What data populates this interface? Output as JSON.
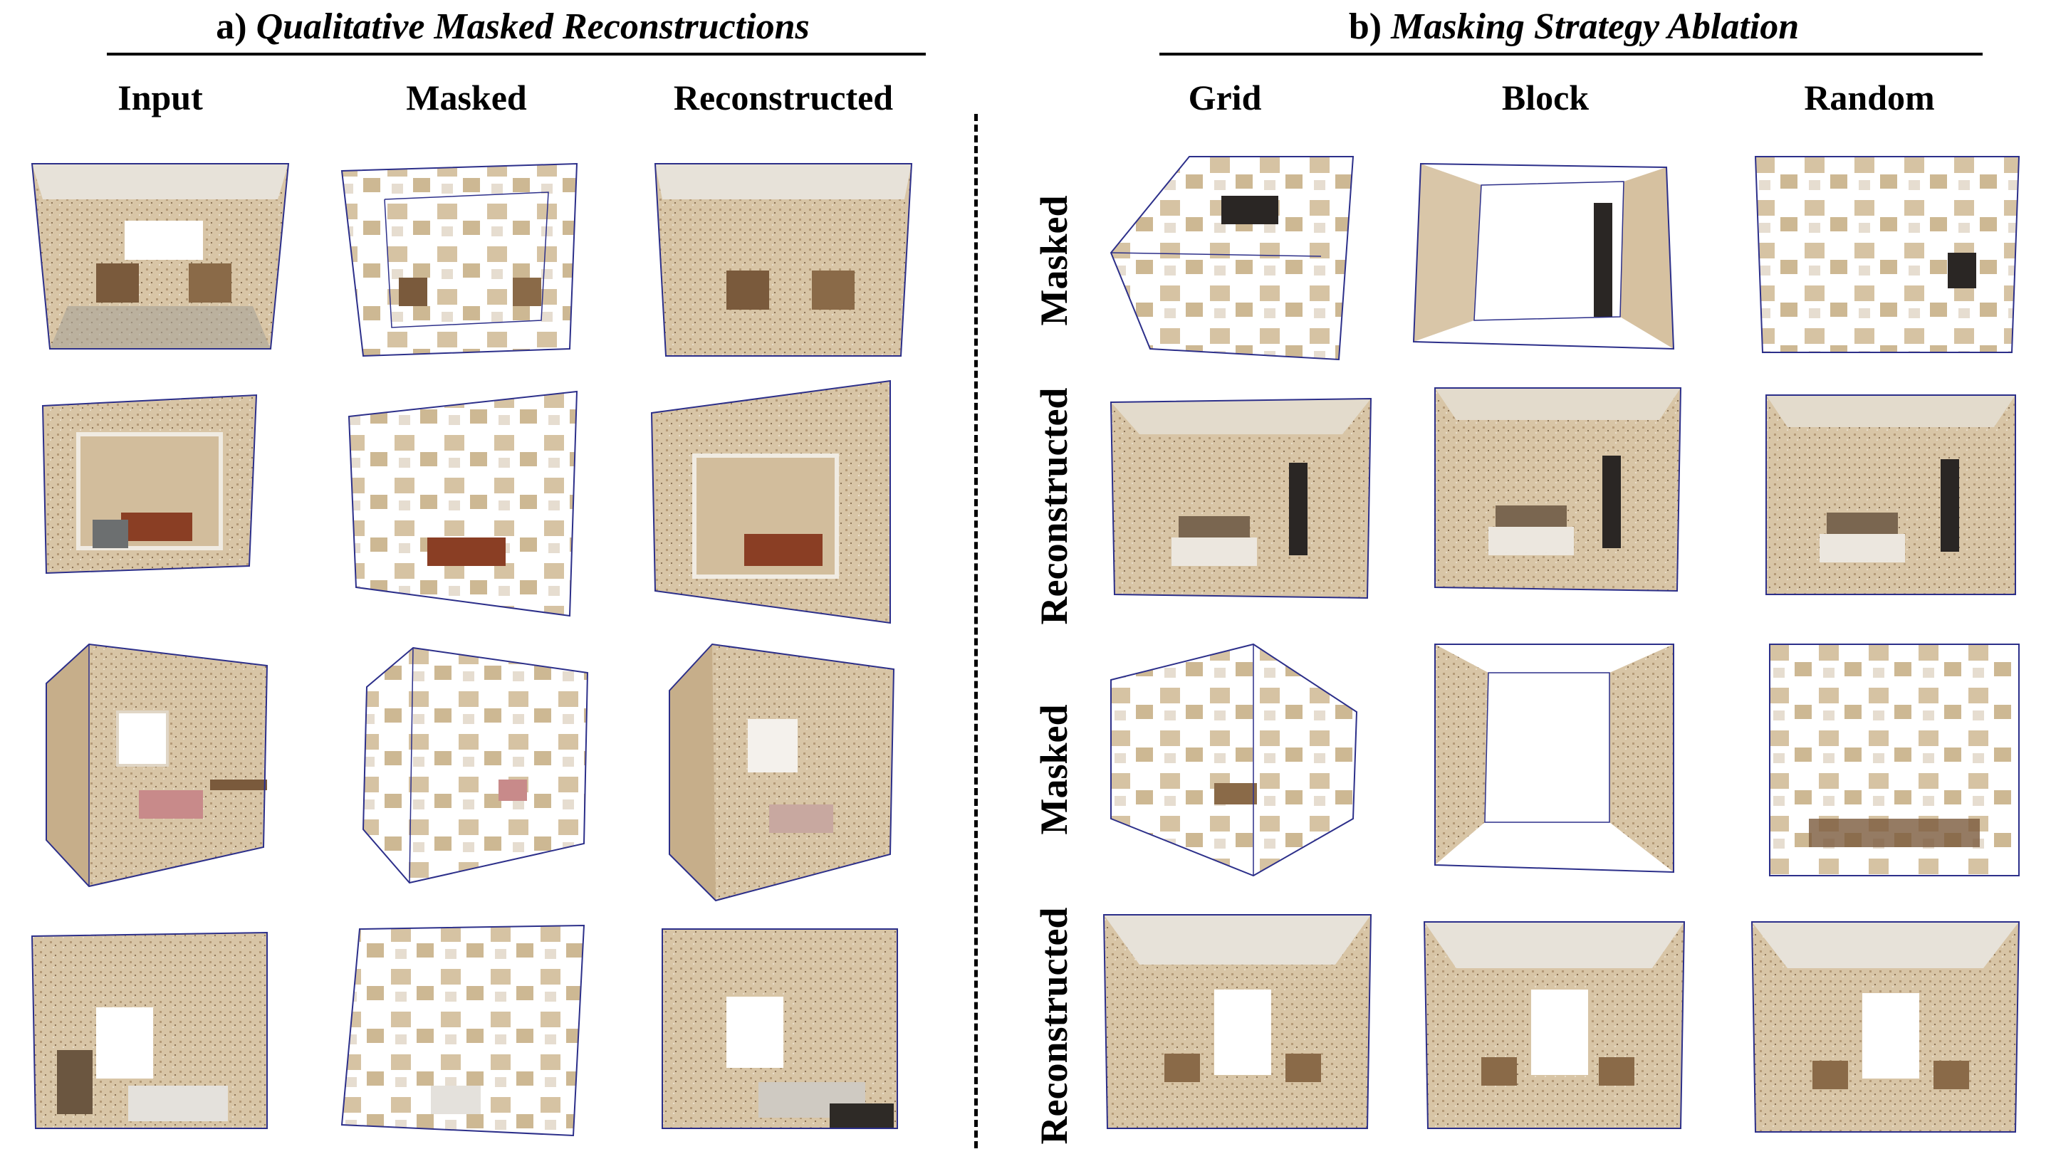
{
  "panel_a": {
    "label": "a)",
    "title": "Qualitative Masked Reconstructions",
    "columns": [
      "Input",
      "Masked",
      "Reconstructed"
    ]
  },
  "panel_b": {
    "label": "b)",
    "title": "Masking Strategy Ablation",
    "columns": [
      "Grid",
      "Block",
      "Random"
    ],
    "rows": [
      "Masked",
      "Reconstructed",
      "Masked",
      "Reconstructed"
    ]
  },
  "colors": {
    "wall": "#d9c6a8",
    "wall_dark": "#bfa886",
    "ceiling": "#e9e4dc",
    "floor": "#a9a39a",
    "furniture": "#7a5a3c",
    "frame": "#2c2f8a"
  }
}
